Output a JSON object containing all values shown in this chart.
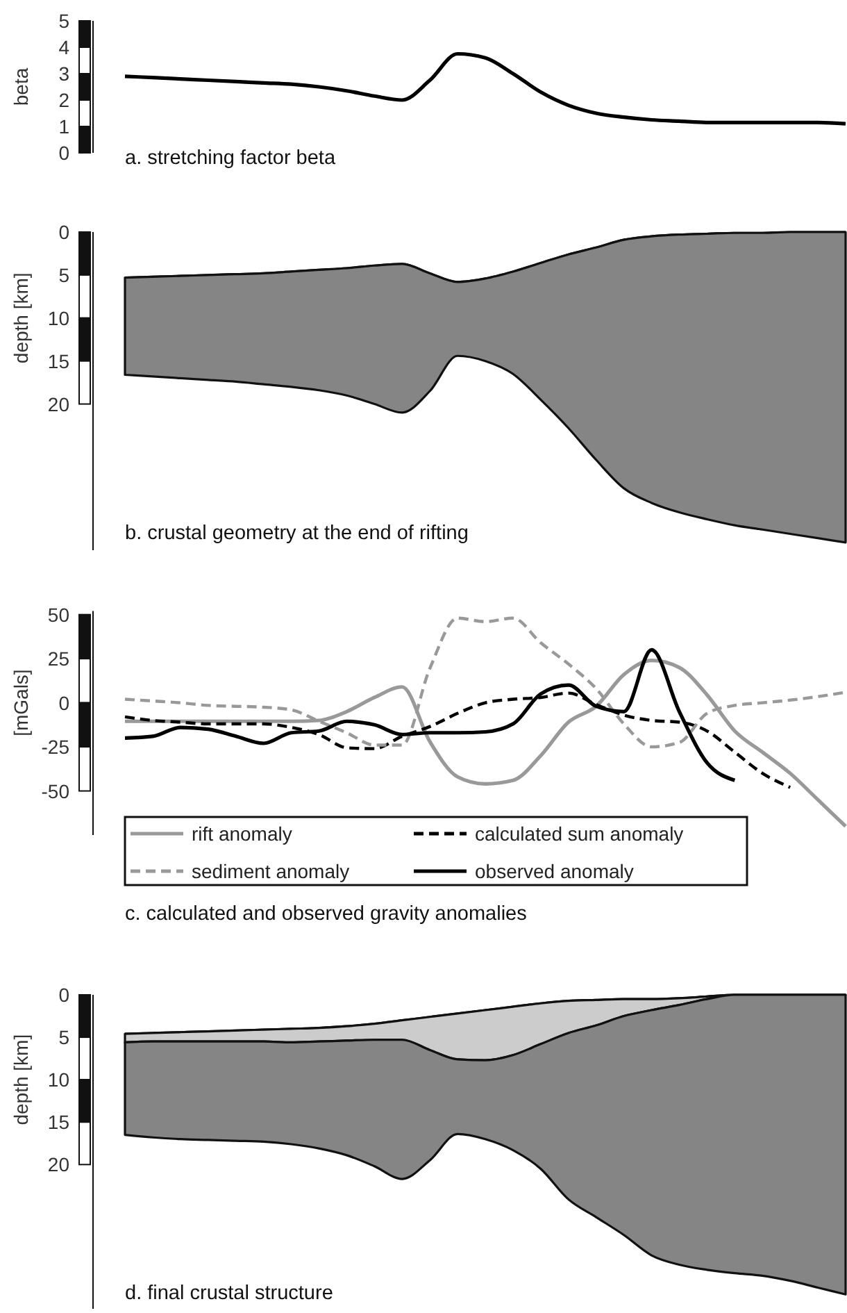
{
  "chart_data": [
    {
      "type": "line",
      "title": "a. stretching factor beta",
      "ylabel": "beta",
      "categories": [
        null,
        null,
        null,
        null,
        null,
        null,
        null,
        null,
        null,
        null,
        null,
        null,
        null,
        null,
        null,
        null,
        null,
        null,
        null,
        null,
        null,
        null,
        null,
        null,
        null,
        null,
        null
      ],
      "series": [
        {
          "color": "#000000",
          "values": [
            2.9,
            2.85,
            2.8,
            2.75,
            2.7,
            2.65,
            2.6,
            2.5,
            2.35,
            2.15,
            2.0,
            2.75,
            3.75,
            3.6,
            3.0,
            2.3,
            1.8,
            1.5,
            1.35,
            1.25,
            1.2,
            1.15,
            1.15,
            1.15,
            1.15,
            1.15,
            1.1
          ]
        }
      ],
      "ylim": [
        0,
        5
      ],
      "yticks": [
        0,
        1,
        2,
        3,
        4,
        5
      ],
      "tick_labels": "y"
    },
    {
      "type": "area",
      "stacked": true,
      "title": "b. crustal geometry at the end of rifting",
      "ylabel": "depth [km]",
      "categories": [
        null,
        null,
        null,
        null,
        null,
        null,
        null,
        null,
        null,
        null,
        null,
        null,
        null,
        null,
        null,
        null,
        null,
        null,
        null,
        null,
        null,
        null,
        null,
        null,
        null,
        null,
        null
      ],
      "series": [
        {
          "color": "#ffffff",
          "values": [
            5.3,
            5.2,
            5.1,
            5.0,
            4.9,
            4.8,
            4.6,
            4.4,
            4.2,
            3.9,
            3.7,
            4.8,
            5.8,
            5.4,
            4.6,
            3.6,
            2.6,
            1.8,
            0.9,
            0.5,
            0.3,
            0.2,
            0.1,
            0.1,
            0,
            0,
            0
          ]
        },
        {
          "color": "#858585",
          "values": [
            11.3,
            11.6,
            11.9,
            12.2,
            12.5,
            12.9,
            13.4,
            14.0,
            14.8,
            16.1,
            17.3,
            13.7,
            8.6,
            9.6,
            11.9,
            15.9,
            20.2,
            24.7,
            28.9,
            31.0,
            32.3,
            33.2,
            34.0,
            34.5,
            35.1,
            35.6,
            36.1
          ]
        }
      ],
      "ylim": [
        37,
        0
      ],
      "yticks": [
        0,
        5,
        10,
        15,
        20
      ],
      "tick_labels": "y"
    },
    {
      "type": "line",
      "title": "c. calculated and observed gravity anomalies",
      "ylabel": "[mGals]",
      "categories": [
        null,
        null,
        null,
        null,
        null,
        null,
        null,
        null,
        null,
        null,
        null,
        null,
        null,
        null,
        null,
        null,
        null,
        null,
        null,
        null,
        null,
        null,
        null,
        null,
        null,
        null,
        null
      ],
      "series": [
        {
          "name": "rift anomaly",
          "color": "#999999",
          "line_style": "solid",
          "values": [
            -10.5,
            -10.5,
            -10.5,
            -10.5,
            -10.5,
            -10.5,
            -10.5,
            -10,
            -5,
            3,
            9,
            -22,
            -42,
            -46,
            -44,
            -30,
            -11,
            -2,
            16,
            24,
            20,
            4.5,
            -16,
            -28,
            -40,
            -55,
            -70
          ]
        },
        {
          "name": "calculated sum anomaly",
          "color": "#000000",
          "line_style": "dashed",
          "values": [
            -8,
            -10,
            -11,
            -12,
            -12,
            -12,
            -14,
            -18,
            -25.5,
            -26,
            -19,
            -13.5,
            -6,
            0,
            2,
            3,
            5.5,
            -1,
            -7,
            -10,
            -11,
            -16,
            -28,
            -40,
            -48,
            null,
            null
          ]
        },
        {
          "name": "sediment anomaly",
          "color": "#999999",
          "line_style": "dashed",
          "values": [
            2,
            1,
            0,
            -1.5,
            -2,
            -2.5,
            -4,
            -10.5,
            -17,
            -24,
            -24,
            19.5,
            48,
            46,
            48,
            34,
            22,
            8,
            -12,
            -25,
            -22.5,
            -6,
            -1.5,
            0,
            1.5,
            3.5,
            6
          ]
        },
        {
          "name": "observed anomaly",
          "color": "#000000",
          "line_style": "solid",
          "values": [
            -20,
            -19,
            -14,
            -15,
            -19,
            -23,
            -17,
            -16,
            -10.5,
            -12.5,
            -18,
            -17,
            -17,
            -16.5,
            -12,
            5,
            10,
            -2,
            -5,
            30,
            -5,
            -34,
            -44,
            null,
            null,
            null,
            null
          ]
        }
      ],
      "ylim": [
        -75,
        52
      ],
      "yticks": [
        50,
        25,
        0,
        -25,
        -50
      ],
      "tick_labels": "y",
      "legend": "bottom"
    },
    {
      "type": "area",
      "stacked": true,
      "title": "d. final crustal structure",
      "ylabel": "depth [km]",
      "categories": [
        null,
        null,
        null,
        null,
        null,
        null,
        null,
        null,
        null,
        null,
        null,
        null,
        null,
        null,
        null,
        null,
        null,
        null,
        null,
        null,
        null,
        null,
        null,
        null,
        null,
        null,
        null
      ],
      "series": [
        {
          "color": "#ffffff",
          "values": [
            4.6,
            4.5,
            4.4,
            4.3,
            4.2,
            4.1,
            4.0,
            3.9,
            3.7,
            3.4,
            3.0,
            2.6,
            2.2,
            1.8,
            1.4,
            1.0,
            0.7,
            0.6,
            0.5,
            0.5,
            0.4,
            0.2,
            0,
            0,
            0,
            0,
            0
          ]
        },
        {
          "color": "#cccccc",
          "values": [
            1.0,
            1.0,
            1.1,
            1.2,
            1.3,
            1.4,
            1.6,
            1.6,
            1.7,
            1.9,
            2.3,
            3.9,
            5.4,
            5.9,
            5.7,
            4.8,
            3.8,
            3.0,
            2.0,
            1.3,
            0.8,
            0.3,
            0,
            0,
            0,
            0,
            0
          ]
        },
        {
          "color": "#858585",
          "values": [
            10.9,
            11.3,
            11.5,
            11.6,
            11.7,
            11.8,
            12.0,
            12.6,
            13.5,
            14.9,
            16.4,
            13.0,
            8.8,
            9.3,
            11.2,
            14.7,
            19.6,
            22.6,
            25.8,
            28.9,
            30.6,
            31.9,
            32.8,
            33.1,
            33.7,
            34.5,
            35.3
          ]
        }
      ],
      "ylim": [
        37,
        0
      ],
      "yticks": [
        0,
        5,
        10,
        15,
        20
      ],
      "tick_labels": "y"
    }
  ]
}
